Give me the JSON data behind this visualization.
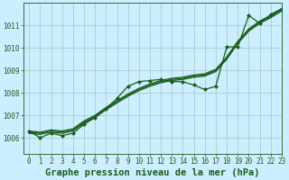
{
  "title": "Graphe pression niveau de la mer (hPa)",
  "background_color": "#cceeff",
  "grid_color": "#aacccc",
  "line_color": "#1a5c1a",
  "xlim": [
    -0.5,
    23
  ],
  "ylim": [
    1005.3,
    1012.0
  ],
  "xticks": [
    0,
    1,
    2,
    3,
    4,
    5,
    6,
    7,
    8,
    9,
    10,
    11,
    12,
    13,
    14,
    15,
    16,
    17,
    18,
    19,
    20,
    21,
    22,
    23
  ],
  "yticks": [
    1006,
    1007,
    1008,
    1009,
    1010,
    1011
  ],
  "linear_series": [
    [
      1006.3,
      1006.25,
      1006.35,
      1006.3,
      1006.4,
      1006.75,
      1007.0,
      1007.35,
      1007.65,
      1007.95,
      1008.2,
      1008.4,
      1008.55,
      1008.65,
      1008.7,
      1008.8,
      1008.85,
      1009.05,
      1009.6,
      1010.3,
      1010.85,
      1011.2,
      1011.45,
      1011.75
    ],
    [
      1006.25,
      1006.2,
      1006.3,
      1006.25,
      1006.35,
      1006.7,
      1006.95,
      1007.3,
      1007.6,
      1007.9,
      1008.15,
      1008.35,
      1008.5,
      1008.6,
      1008.65,
      1008.75,
      1008.8,
      1009.0,
      1009.55,
      1010.25,
      1010.8,
      1011.15,
      1011.4,
      1011.7
    ],
    [
      1006.2,
      1006.15,
      1006.25,
      1006.2,
      1006.3,
      1006.65,
      1006.9,
      1007.25,
      1007.55,
      1007.85,
      1008.1,
      1008.3,
      1008.45,
      1008.55,
      1008.6,
      1008.7,
      1008.75,
      1008.95,
      1009.5,
      1010.2,
      1010.75,
      1011.1,
      1011.35,
      1011.65
    ]
  ],
  "marker_series_y": [
    1006.3,
    1006.0,
    1006.2,
    1006.1,
    1006.2,
    1006.6,
    1006.9,
    1007.3,
    1007.75,
    1008.3,
    1008.5,
    1008.55,
    1008.6,
    1008.5,
    1008.5,
    1008.35,
    1008.15,
    1008.3,
    1010.05,
    1010.05,
    1011.45,
    1011.1,
    1011.5,
    1011.75
  ],
  "title_fontsize": 7.5,
  "tick_fontsize": 5.5
}
